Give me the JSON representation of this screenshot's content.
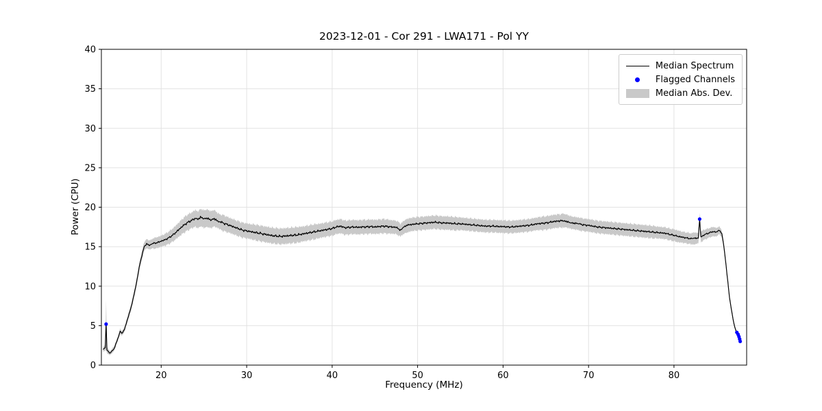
{
  "chart_data": {
    "type": "line",
    "title": "2023-12-01 - Cor 291 - LWA171 - Pol YY",
    "xlabel": "Frequency (MHz)",
    "ylabel": "Power (CPU)",
    "xlim": [
      13,
      88.5
    ],
    "ylim": [
      0,
      40
    ],
    "xticks": [
      20,
      30,
      40,
      50,
      60,
      70,
      80
    ],
    "yticks": [
      0,
      5,
      10,
      15,
      20,
      25,
      30,
      35,
      40
    ],
    "grid": true,
    "legend_position": "upper right",
    "series": [
      {
        "name": "Median Spectrum",
        "type": "line",
        "color": "#000000",
        "x": [
          13.2,
          13.45,
          13.55,
          13.65,
          14.0,
          14.5,
          15.0,
          15.2,
          15.4,
          15.7,
          16.0,
          16.5,
          17.0,
          17.5,
          18.0,
          18.3,
          18.6,
          19.0,
          19.5,
          20.0,
          20.5,
          21.0,
          21.5,
          22.0,
          22.5,
          23.0,
          23.5,
          24.0,
          24.3,
          24.6,
          25.0,
          25.4,
          25.8,
          26.2,
          26.6,
          27.0,
          27.5,
          28.0,
          28.5,
          29.0,
          29.5,
          30.0,
          30.5,
          31.0,
          31.5,
          32.0,
          32.5,
          33.0,
          33.5,
          34.0,
          34.5,
          35.0,
          35.5,
          36.0,
          36.5,
          37.0,
          37.5,
          38.0,
          38.5,
          39.0,
          39.5,
          40.0,
          40.5,
          41.0,
          41.5,
          42.0,
          42.5,
          43.0,
          43.5,
          44.0,
          44.5,
          45.0,
          45.5,
          46.0,
          46.5,
          47.0,
          47.5,
          48.0,
          48.3,
          48.6,
          49.0,
          49.5,
          50.0,
          50.5,
          51.0,
          51.5,
          52.0,
          52.5,
          53.0,
          53.5,
          54.0,
          54.5,
          55.0,
          55.5,
          56.0,
          56.5,
          57.0,
          57.5,
          58.0,
          58.5,
          59.0,
          59.5,
          60.0,
          60.5,
          61.0,
          61.5,
          62.0,
          62.5,
          63.0,
          63.5,
          64.0,
          64.5,
          65.0,
          65.5,
          66.0,
          66.5,
          67.0,
          67.4,
          67.8,
          68.2,
          68.6,
          69.0,
          69.5,
          70.0,
          70.5,
          71.0,
          71.5,
          72.0,
          72.5,
          73.0,
          73.5,
          74.0,
          74.5,
          75.0,
          75.5,
          76.0,
          76.5,
          77.0,
          77.5,
          78.0,
          78.5,
          79.0,
          79.5,
          80.0,
          80.5,
          81.0,
          81.5,
          82.0,
          82.4,
          82.85,
          83.0,
          83.15,
          83.5,
          84.0,
          84.5,
          85.0,
          85.3,
          85.6,
          85.8,
          86.0,
          86.2,
          86.5,
          86.8,
          87.0,
          87.2,
          87.4,
          87.6,
          87.8
        ],
        "y": [
          2.0,
          2.2,
          5.2,
          1.9,
          1.5,
          2.1,
          3.6,
          4.3,
          4.0,
          4.5,
          5.6,
          7.4,
          9.8,
          12.8,
          15.0,
          15.4,
          15.2,
          15.4,
          15.5,
          15.7,
          15.9,
          16.2,
          16.6,
          17.1,
          17.6,
          18.0,
          18.3,
          18.6,
          18.4,
          18.7,
          18.5,
          18.6,
          18.4,
          18.6,
          18.3,
          18.1,
          17.9,
          17.7,
          17.5,
          17.3,
          17.1,
          17.0,
          16.9,
          16.8,
          16.7,
          16.6,
          16.5,
          16.4,
          16.35,
          16.3,
          16.35,
          16.4,
          16.45,
          16.5,
          16.6,
          16.7,
          16.8,
          16.9,
          17.0,
          17.1,
          17.2,
          17.3,
          17.5,
          17.6,
          17.4,
          17.45,
          17.5,
          17.45,
          17.5,
          17.5,
          17.55,
          17.5,
          17.55,
          17.6,
          17.55,
          17.5,
          17.45,
          17.1,
          17.4,
          17.6,
          17.75,
          17.85,
          17.9,
          17.95,
          18.0,
          18.05,
          18.1,
          18.05,
          18.0,
          18.0,
          17.95,
          17.9,
          17.9,
          17.85,
          17.8,
          17.75,
          17.7,
          17.65,
          17.6,
          17.6,
          17.6,
          17.55,
          17.55,
          17.5,
          17.5,
          17.55,
          17.6,
          17.65,
          17.7,
          17.8,
          17.9,
          17.95,
          18.0,
          18.1,
          18.2,
          18.25,
          18.3,
          18.25,
          18.1,
          18.0,
          17.95,
          17.85,
          17.75,
          17.7,
          17.6,
          17.5,
          17.45,
          17.4,
          17.35,
          17.3,
          17.25,
          17.2,
          17.15,
          17.1,
          17.05,
          17.0,
          16.95,
          16.9,
          16.85,
          16.8,
          16.75,
          16.7,
          16.55,
          16.45,
          16.3,
          16.2,
          16.1,
          16.0,
          16.05,
          16.1,
          18.5,
          16.2,
          16.5,
          16.7,
          16.9,
          16.85,
          17.1,
          16.6,
          15.3,
          13.5,
          11.5,
          8.5,
          6.5,
          5.3,
          4.5,
          3.9,
          3.4,
          3.0
        ]
      },
      {
        "name": "Median Abs. Dev.",
        "type": "band",
        "color": "#c9c9c9",
        "mad": [
          0.3,
          0.4,
          3.2,
          0.4,
          0.25,
          0.3,
          0.3,
          0.35,
          0.3,
          0.3,
          0.35,
          0.4,
          0.45,
          0.5,
          0.55,
          0.6,
          0.6,
          0.65,
          0.7,
          0.7,
          0.75,
          0.8,
          0.85,
          0.9,
          0.95,
          1.0,
          1.0,
          1.05,
          1.05,
          1.05,
          1.05,
          1.05,
          1.05,
          1.05,
          1.0,
          1.0,
          1.0,
          0.95,
          0.95,
          0.95,
          0.95,
          0.95,
          0.95,
          1.0,
          1.0,
          1.0,
          1.0,
          1.0,
          1.0,
          1.0,
          1.0,
          1.0,
          1.0,
          1.0,
          0.95,
          0.95,
          0.95,
          0.95,
          0.9,
          0.9,
          0.9,
          0.9,
          0.9,
          0.9,
          0.9,
          0.9,
          0.9,
          0.9,
          0.9,
          0.9,
          0.9,
          0.9,
          0.9,
          0.9,
          0.9,
          0.85,
          0.85,
          0.85,
          0.85,
          0.85,
          0.85,
          0.85,
          0.85,
          0.85,
          0.85,
          0.85,
          0.85,
          0.85,
          0.85,
          0.85,
          0.85,
          0.85,
          0.8,
          0.8,
          0.8,
          0.8,
          0.8,
          0.8,
          0.8,
          0.8,
          0.8,
          0.8,
          0.8,
          0.8,
          0.8,
          0.8,
          0.8,
          0.8,
          0.8,
          0.8,
          0.8,
          0.85,
          0.85,
          0.85,
          0.85,
          0.85,
          0.85,
          0.85,
          0.85,
          0.85,
          0.85,
          0.8,
          0.8,
          0.8,
          0.8,
          0.8,
          0.8,
          0.8,
          0.8,
          0.8,
          0.8,
          0.8,
          0.8,
          0.8,
          0.8,
          0.8,
          0.8,
          0.8,
          0.8,
          0.75,
          0.75,
          0.75,
          0.75,
          0.75,
          0.75,
          0.7,
          0.7,
          0.7,
          0.7,
          0.7,
          0.7,
          0.65,
          0.65,
          0.6,
          0.6,
          0.55,
          0.5,
          0.45,
          0.4,
          0.35,
          0.3,
          0.3,
          0.25,
          0.25,
          0.2,
          0.2,
          0.2,
          0.2
        ]
      },
      {
        "name": "Flagged Channels",
        "type": "scatter",
        "color": "#0000ff",
        "points": [
          [
            13.55,
            5.2
          ],
          [
            83.0,
            18.5
          ],
          [
            87.35,
            4.15
          ],
          [
            87.5,
            3.9
          ],
          [
            87.6,
            3.6
          ],
          [
            87.68,
            3.3
          ],
          [
            87.75,
            3.0
          ]
        ]
      }
    ]
  }
}
